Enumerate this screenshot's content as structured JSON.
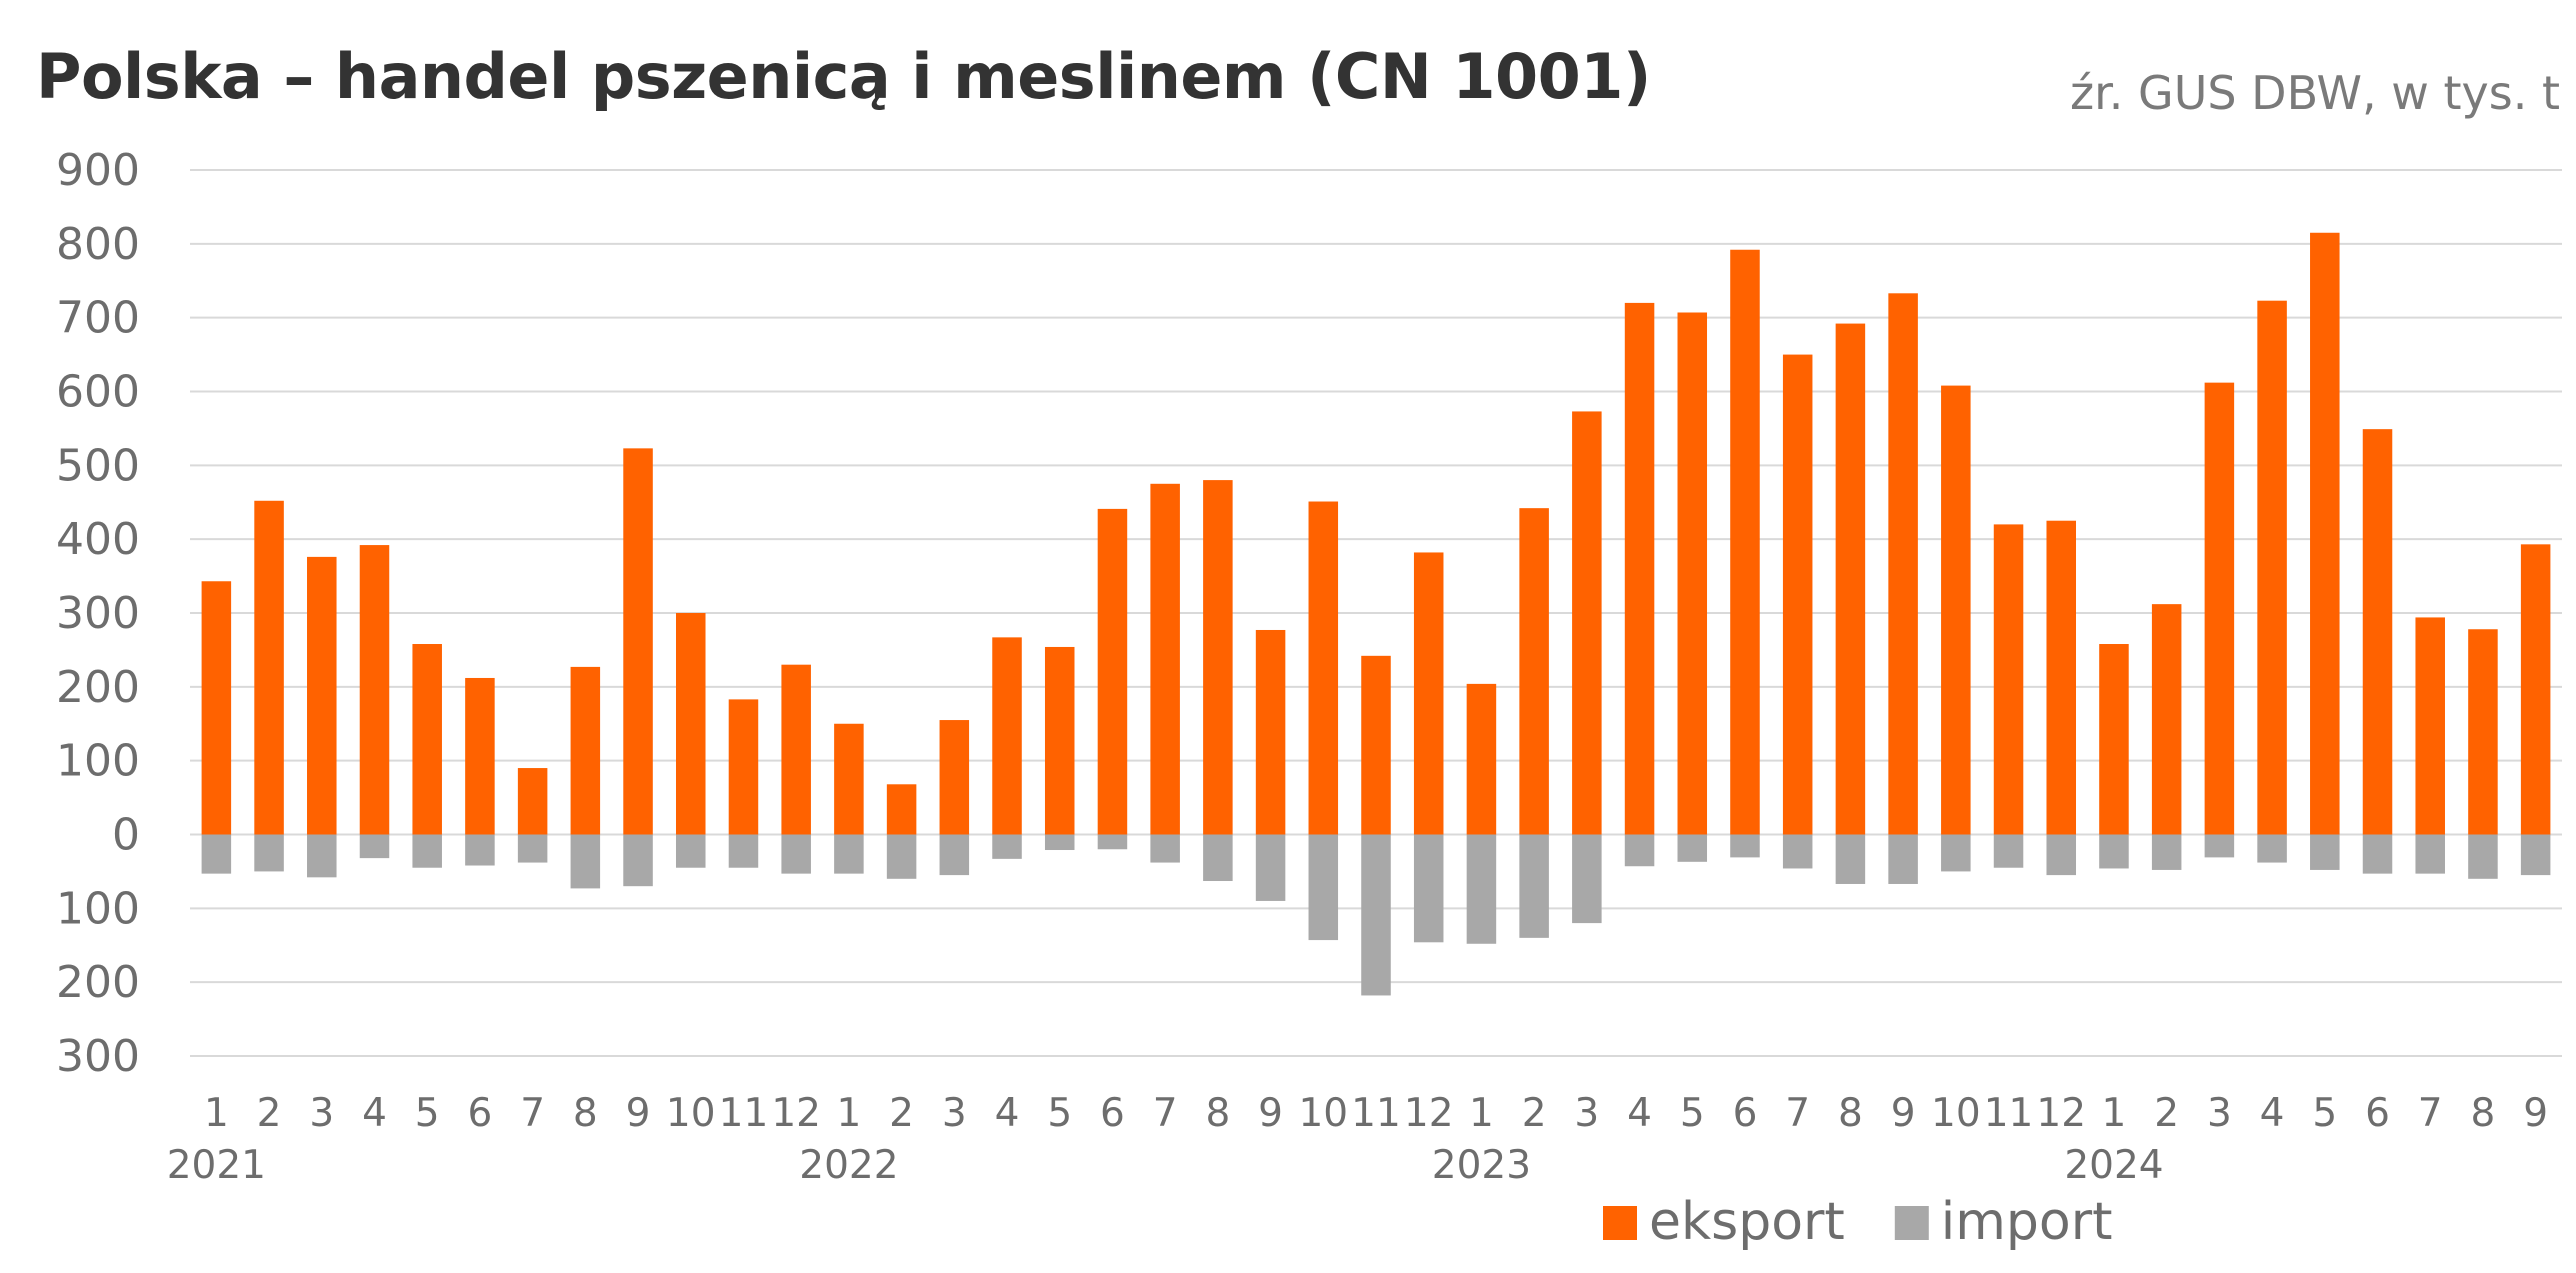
{
  "title": "Polska – handel pszenicą i meslinem (CN 1001)",
  "source": "źr. GUS DBW, w tys. t",
  "chart_data": {
    "type": "bar",
    "title": "Polska – handel pszenicą i meslinem (CN 1001)",
    "subtitle": "źr. GUS DBW, w tys. t",
    "xlabel": "",
    "ylabel": "",
    "ylim": [
      -300,
      900
    ],
    "yticks": [
      900,
      800,
      700,
      600,
      500,
      400,
      300,
      200,
      100,
      0,
      -100,
      -200,
      -300
    ],
    "ytick_labels": [
      "900",
      "800",
      "700",
      "600",
      "500",
      "400",
      "300",
      "200",
      "100",
      "0",
      "100",
      "200",
      "300"
    ],
    "grid": true,
    "legend": "bottom-right",
    "categories": [
      "1",
      "2",
      "3",
      "4",
      "5",
      "6",
      "7",
      "8",
      "9",
      "10",
      "11",
      "12",
      "1",
      "2",
      "3",
      "4",
      "5",
      "6",
      "7",
      "8",
      "9",
      "10",
      "11",
      "12",
      "1",
      "2",
      "3",
      "4",
      "5",
      "6",
      "7",
      "8",
      "9",
      "10",
      "11",
      "12",
      "1",
      "2",
      "3",
      "4",
      "5",
      "6",
      "7",
      "8",
      "9"
    ],
    "years": [
      {
        "label": "2021",
        "start_index": 0
      },
      {
        "label": "2022",
        "start_index": 12
      },
      {
        "label": "2023",
        "start_index": 24
      },
      {
        "label": "2024",
        "start_index": 36
      }
    ],
    "series": [
      {
        "name": "eksport",
        "color": "#ff6200",
        "values": [
          343,
          452,
          376,
          392,
          258,
          212,
          90,
          227,
          523,
          300,
          183,
          230,
          150,
          68,
          155,
          267,
          254,
          441,
          475,
          480,
          277,
          451,
          242,
          382,
          204,
          442,
          573,
          720,
          707,
          792,
          650,
          692,
          733,
          608,
          420,
          425,
          258,
          312,
          612,
          723,
          815,
          549,
          294,
          278,
          393
        ]
      },
      {
        "name": "import",
        "color": "#a8a8a8",
        "values": [
          -53,
          -50,
          -58,
          -32,
          -45,
          -42,
          -38,
          -73,
          -70,
          -45,
          -45,
          -53,
          -53,
          -60,
          -55,
          -33,
          -21,
          -20,
          -38,
          -63,
          -90,
          -143,
          -218,
          -146,
          -148,
          -140,
          -120,
          -43,
          -37,
          -31,
          -46,
          -67,
          -67,
          -50,
          -45,
          -55,
          -46,
          -48,
          -31,
          -38,
          -48,
          -53,
          -53,
          -60,
          -55
        ]
      }
    ]
  }
}
